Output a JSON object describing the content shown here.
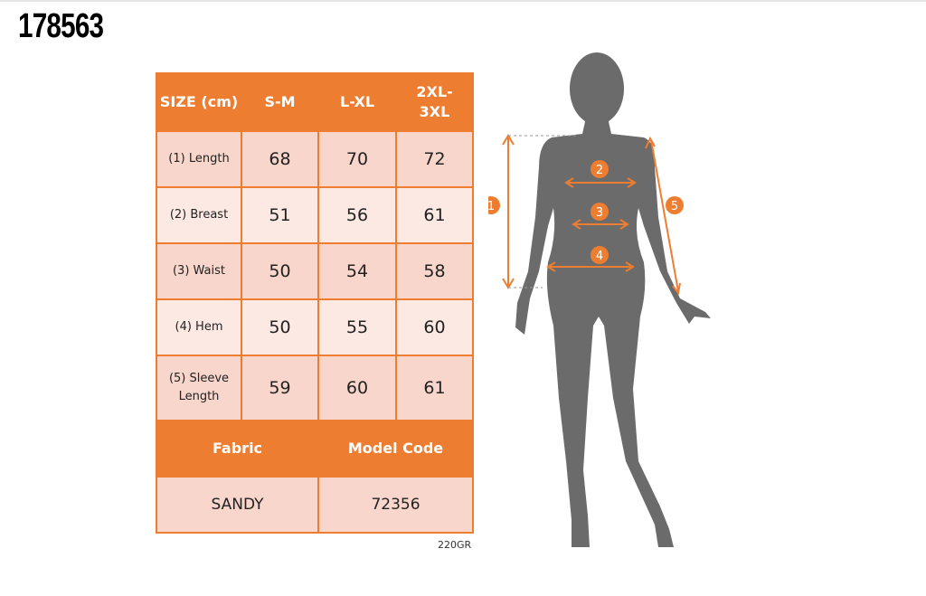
{
  "product_code": "178563",
  "table": {
    "header": [
      "SIZE (cm)",
      "S-M",
      "L-XL",
      "2XL-3XL"
    ],
    "rows": [
      {
        "label": "(1) Length",
        "values": [
          "68",
          "70",
          "72"
        ]
      },
      {
        "label": "(2) Breast",
        "values": [
          "51",
          "56",
          "61"
        ]
      },
      {
        "label": "(3) Waist",
        "values": [
          "50",
          "54",
          "58"
        ]
      },
      {
        "label": "(4) Hem",
        "values": [
          "50",
          "55",
          "60"
        ]
      },
      {
        "label": "(5) Sleeve Length",
        "values": [
          "59",
          "60",
          "61"
        ]
      }
    ],
    "footer_header": [
      "Fabric",
      "Model Code"
    ],
    "footer_values": [
      "SANDY",
      "72356"
    ]
  },
  "fabric_weight": "220GR",
  "figure": {
    "markers": [
      "1",
      "2",
      "3",
      "4",
      "5"
    ]
  },
  "colors": {
    "accent": "#ED7D31",
    "row_dark": "#F8D6CB",
    "row_light": "#FCE9E3",
    "silhouette": "#6b6b6b"
  }
}
